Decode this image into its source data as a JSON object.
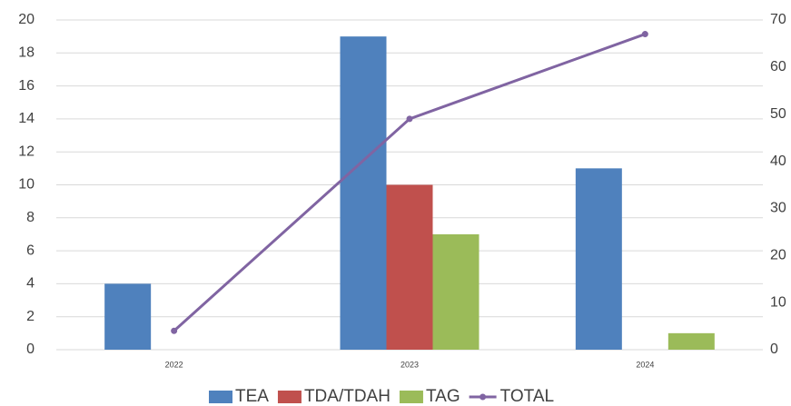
{
  "chart_data": {
    "type": "bar",
    "categories": [
      "2022",
      "2023",
      "2024"
    ],
    "series": [
      {
        "name": "TEA",
        "color": "#4f81bd",
        "values": [
          4,
          19,
          11
        ]
      },
      {
        "name": "TDA/TDAH",
        "color": "#c0504d",
        "values": [
          null,
          10,
          null
        ]
      },
      {
        "name": "TAG",
        "color": "#9bbb59",
        "values": [
          null,
          7,
          1
        ]
      },
      {
        "name": "TOTAL",
        "color": "#8064a2",
        "type": "line",
        "axis": "y2",
        "values": [
          4,
          49,
          67
        ]
      }
    ],
    "ylim": [
      0,
      20
    ],
    "yticks": [
      0,
      2,
      4,
      6,
      8,
      10,
      12,
      14,
      16,
      18,
      20
    ],
    "y2lim": [
      0,
      70
    ],
    "y2ticks": [
      0,
      10,
      20,
      30,
      40,
      50,
      60,
      70
    ],
    "grid": true,
    "legend": "bottom"
  }
}
